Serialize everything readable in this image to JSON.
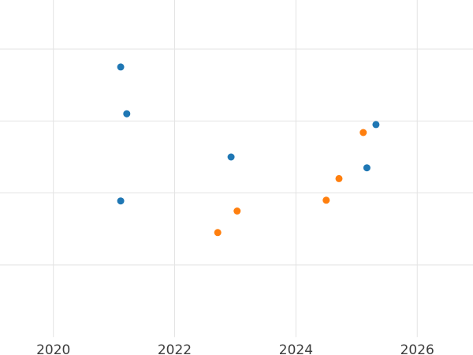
{
  "chart_data": {
    "type": "scatter",
    "title": "",
    "subtitle": "",
    "xlabel": "",
    "ylabel": "",
    "xlim": [
      2019.12,
      2026.92
    ],
    "ylim": [
      0,
      4.68
    ],
    "x_ticks": [
      {
        "value": 2020,
        "label": "2020"
      },
      {
        "value": 2022,
        "label": "2022"
      },
      {
        "value": 2024,
        "label": "2024"
      },
      {
        "value": 2026,
        "label": "2026"
      }
    ],
    "y_ticks": [],
    "y_gridline_values": [
      1,
      2,
      3,
      4
    ],
    "grid": true,
    "legend_position": "none",
    "series": [
      {
        "name": "series-blue",
        "color": "#1f77b4",
        "points": [
          {
            "x": 2021.11,
            "y": 3.75
          },
          {
            "x": 2021.21,
            "y": 3.1
          },
          {
            "x": 2021.11,
            "y": 1.89
          },
          {
            "x": 2022.93,
            "y": 2.5
          },
          {
            "x": 2025.17,
            "y": 2.35
          },
          {
            "x": 2025.32,
            "y": 2.95
          }
        ]
      },
      {
        "name": "series-orange",
        "color": "#ff7f0e",
        "points": [
          {
            "x": 2022.71,
            "y": 1.45
          },
          {
            "x": 2023.03,
            "y": 1.75
          },
          {
            "x": 2024.5,
            "y": 1.9
          },
          {
            "x": 2024.71,
            "y": 2.2
          },
          {
            "x": 2025.11,
            "y": 2.84
          }
        ]
      }
    ]
  },
  "styles": {
    "background_color": "#ffffff",
    "gridline_color": "#e3e3e3",
    "tick_label_color": "#3d3d3d"
  }
}
